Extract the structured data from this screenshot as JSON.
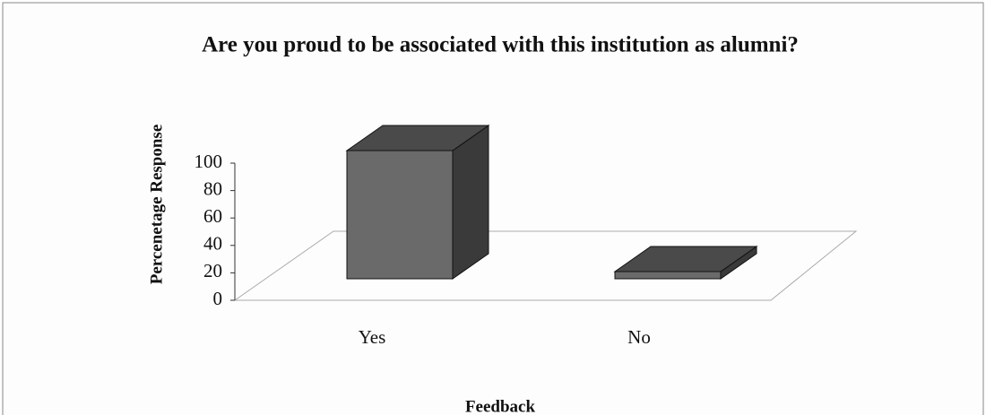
{
  "chart_data": {
    "type": "bar3d",
    "title": "Are you proud to be associated with this institution as alumni?",
    "x_label": "Feedback",
    "y_label": "Percenetage Response",
    "categories": [
      "Yes",
      "No"
    ],
    "values": [
      100,
      0
    ],
    "color": "#6a6a6a",
    "ylim": [
      0,
      100
    ],
    "yticks": [
      0,
      20,
      40,
      60,
      80,
      100
    ]
  }
}
